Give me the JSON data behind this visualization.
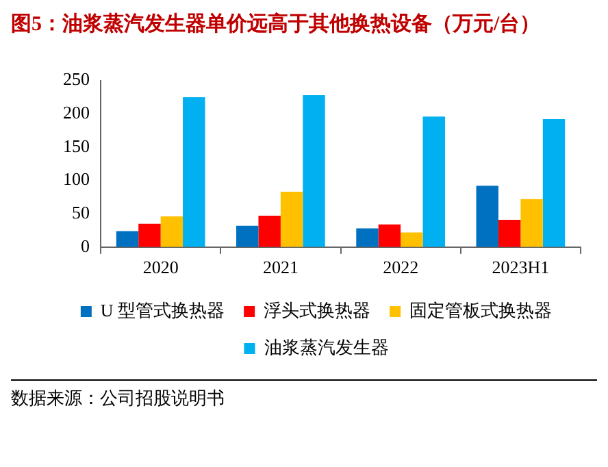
{
  "chart_data": {
    "type": "bar",
    "title": "图5：油浆蒸汽发生器单价远高于其他换热设备（万元/台）",
    "categories": [
      "2020",
      "2021",
      "2022",
      "2023H1"
    ],
    "series": [
      {
        "name": "U 型管式换热器",
        "color": "#0070c0",
        "values": [
          24,
          32,
          28,
          92
        ]
      },
      {
        "name": "浮头式换热器",
        "color": "#ff0000",
        "values": [
          35,
          47,
          34,
          41
        ]
      },
      {
        "name": "固定管板式换热器",
        "color": "#ffc000",
        "values": [
          46,
          83,
          22,
          72
        ]
      },
      {
        "name": "油浆蒸汽发生器",
        "color": "#00b0f0",
        "values": [
          225,
          228,
          196,
          192
        ]
      }
    ],
    "ylim": [
      0,
      250
    ],
    "yticks": [
      0,
      50,
      100,
      150,
      200,
      250
    ],
    "legend": "bottom",
    "annotations": [
      "数据来源：公司招股说明书"
    ]
  }
}
